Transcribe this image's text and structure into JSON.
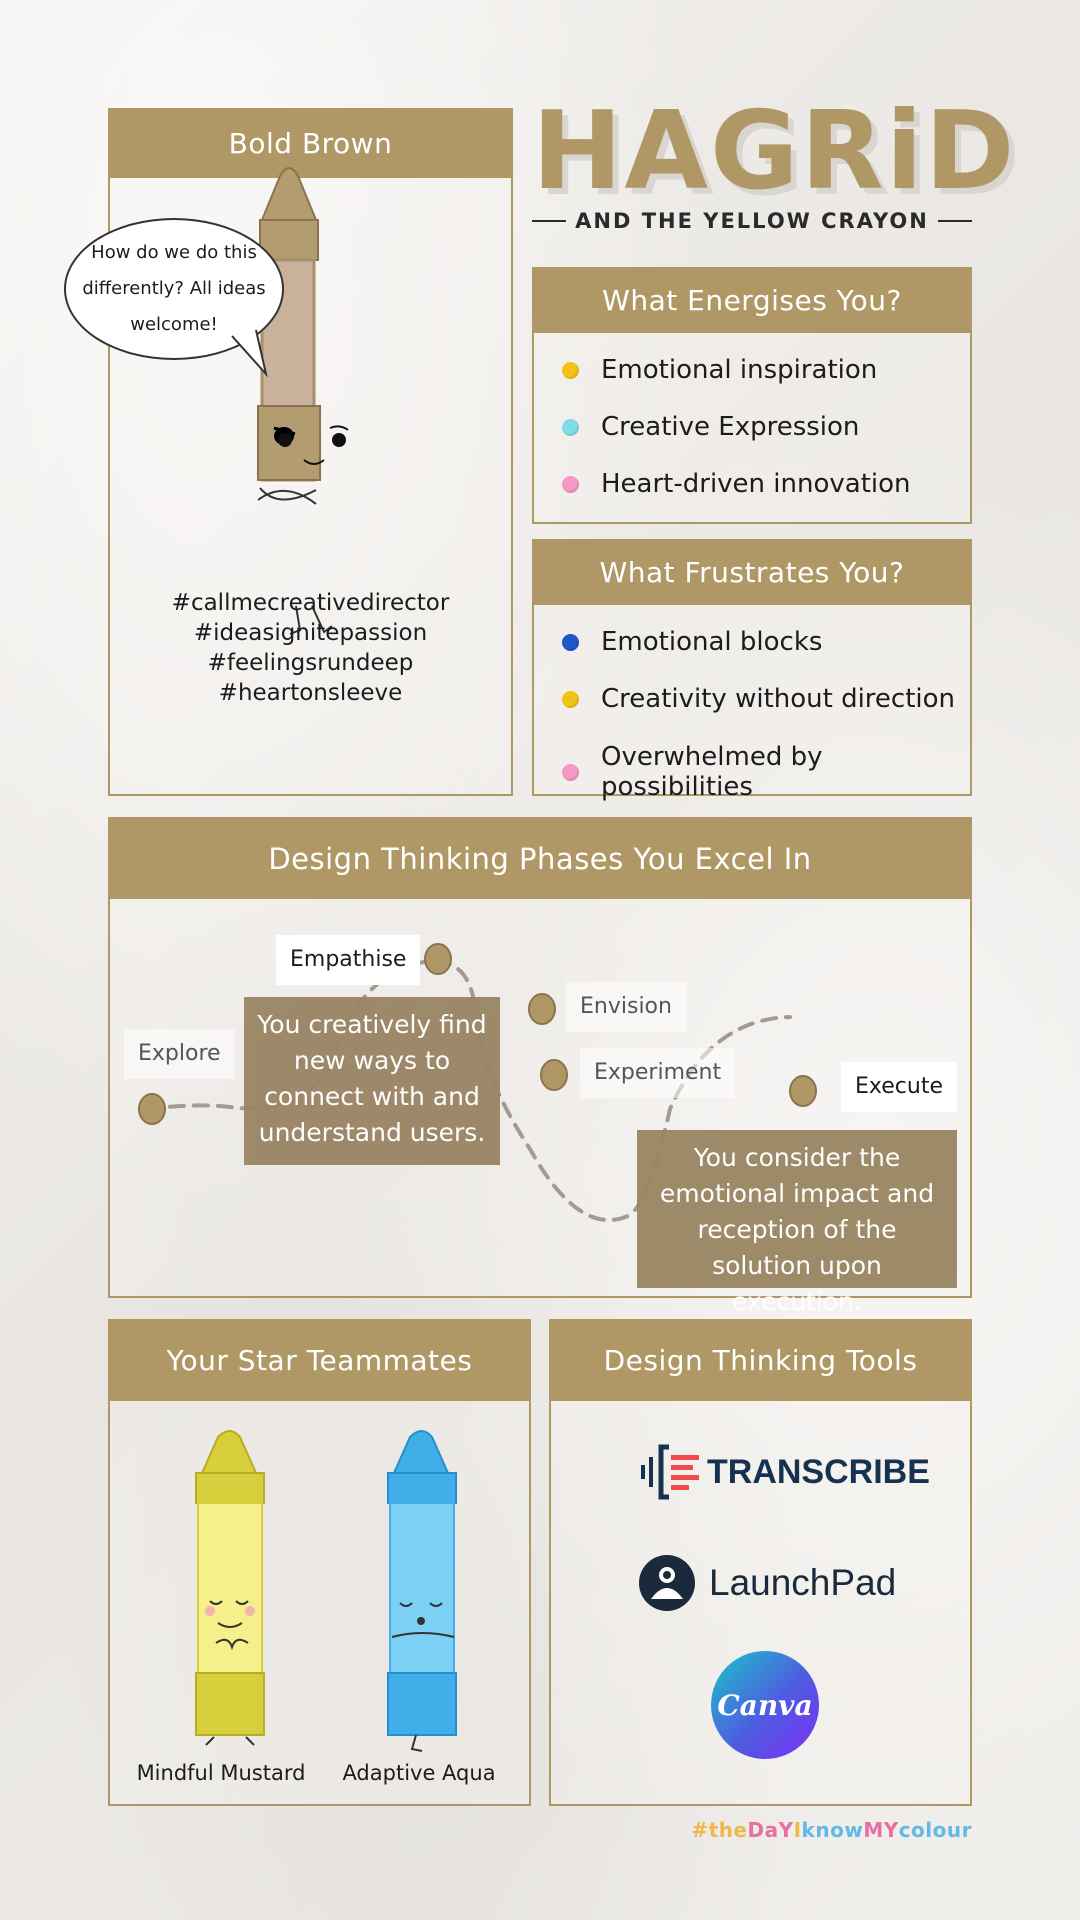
{
  "header": {
    "title": "HAGRiD",
    "subtitle": "AND THE YELLOW CRAYON"
  },
  "profile": {
    "heading": "Bold Brown",
    "speech": "How do we do this differently? All ideas welcome!",
    "hashtags": [
      "#callmecreativedirector",
      "#ideasignitepassion",
      "#feelingsrundeep",
      "#heartonsleeve"
    ]
  },
  "energises": {
    "heading": "What Energises You?",
    "items": [
      {
        "label": "Emotional inspiration",
        "color": "#f2c218"
      },
      {
        "label": "Creative Expression",
        "color": "#7fdde6"
      },
      {
        "label": "Heart-driven innovation",
        "color": "#f29ac4"
      }
    ]
  },
  "frustrates": {
    "heading": "What Frustrates You?",
    "items": [
      {
        "label": "Emotional blocks",
        "color": "#1f57c9"
      },
      {
        "label": "Creativity without direction",
        "color": "#f2c218"
      },
      {
        "label": "Overwhelmed by possibilities",
        "color": "#f29ac4"
      }
    ]
  },
  "phases": {
    "heading": "Design Thinking Phases You Excel In",
    "labels": {
      "explore": "Explore",
      "empathise": "Empathise",
      "envision": "Envision",
      "experiment": "Experiment",
      "execute": "Execute"
    },
    "empathise_desc": "You creatively find new ways to connect with and understand users.",
    "execute_desc": "You consider the emotional impact and reception of the solution upon execution."
  },
  "teammates": {
    "heading": "Your Star Teammates",
    "items": [
      {
        "name": "Mindful Mustard",
        "color": "#f6f08a"
      },
      {
        "name": "Adaptive Aqua",
        "color": "#7cd0f4"
      }
    ]
  },
  "tools": {
    "heading": "Design Thinking Tools",
    "items": [
      "TRANSCRIBE",
      "LaunchPad",
      "Canva"
    ]
  },
  "footer": {
    "hashtag_parts": [
      "#the",
      "DaY",
      "I",
      "know",
      "MY",
      "colour"
    ],
    "colors": [
      "#f0b84a",
      "#e76fa3",
      "#f0b84a",
      "#62b8e8",
      "#e76fa3",
      "#62b8e8"
    ]
  }
}
